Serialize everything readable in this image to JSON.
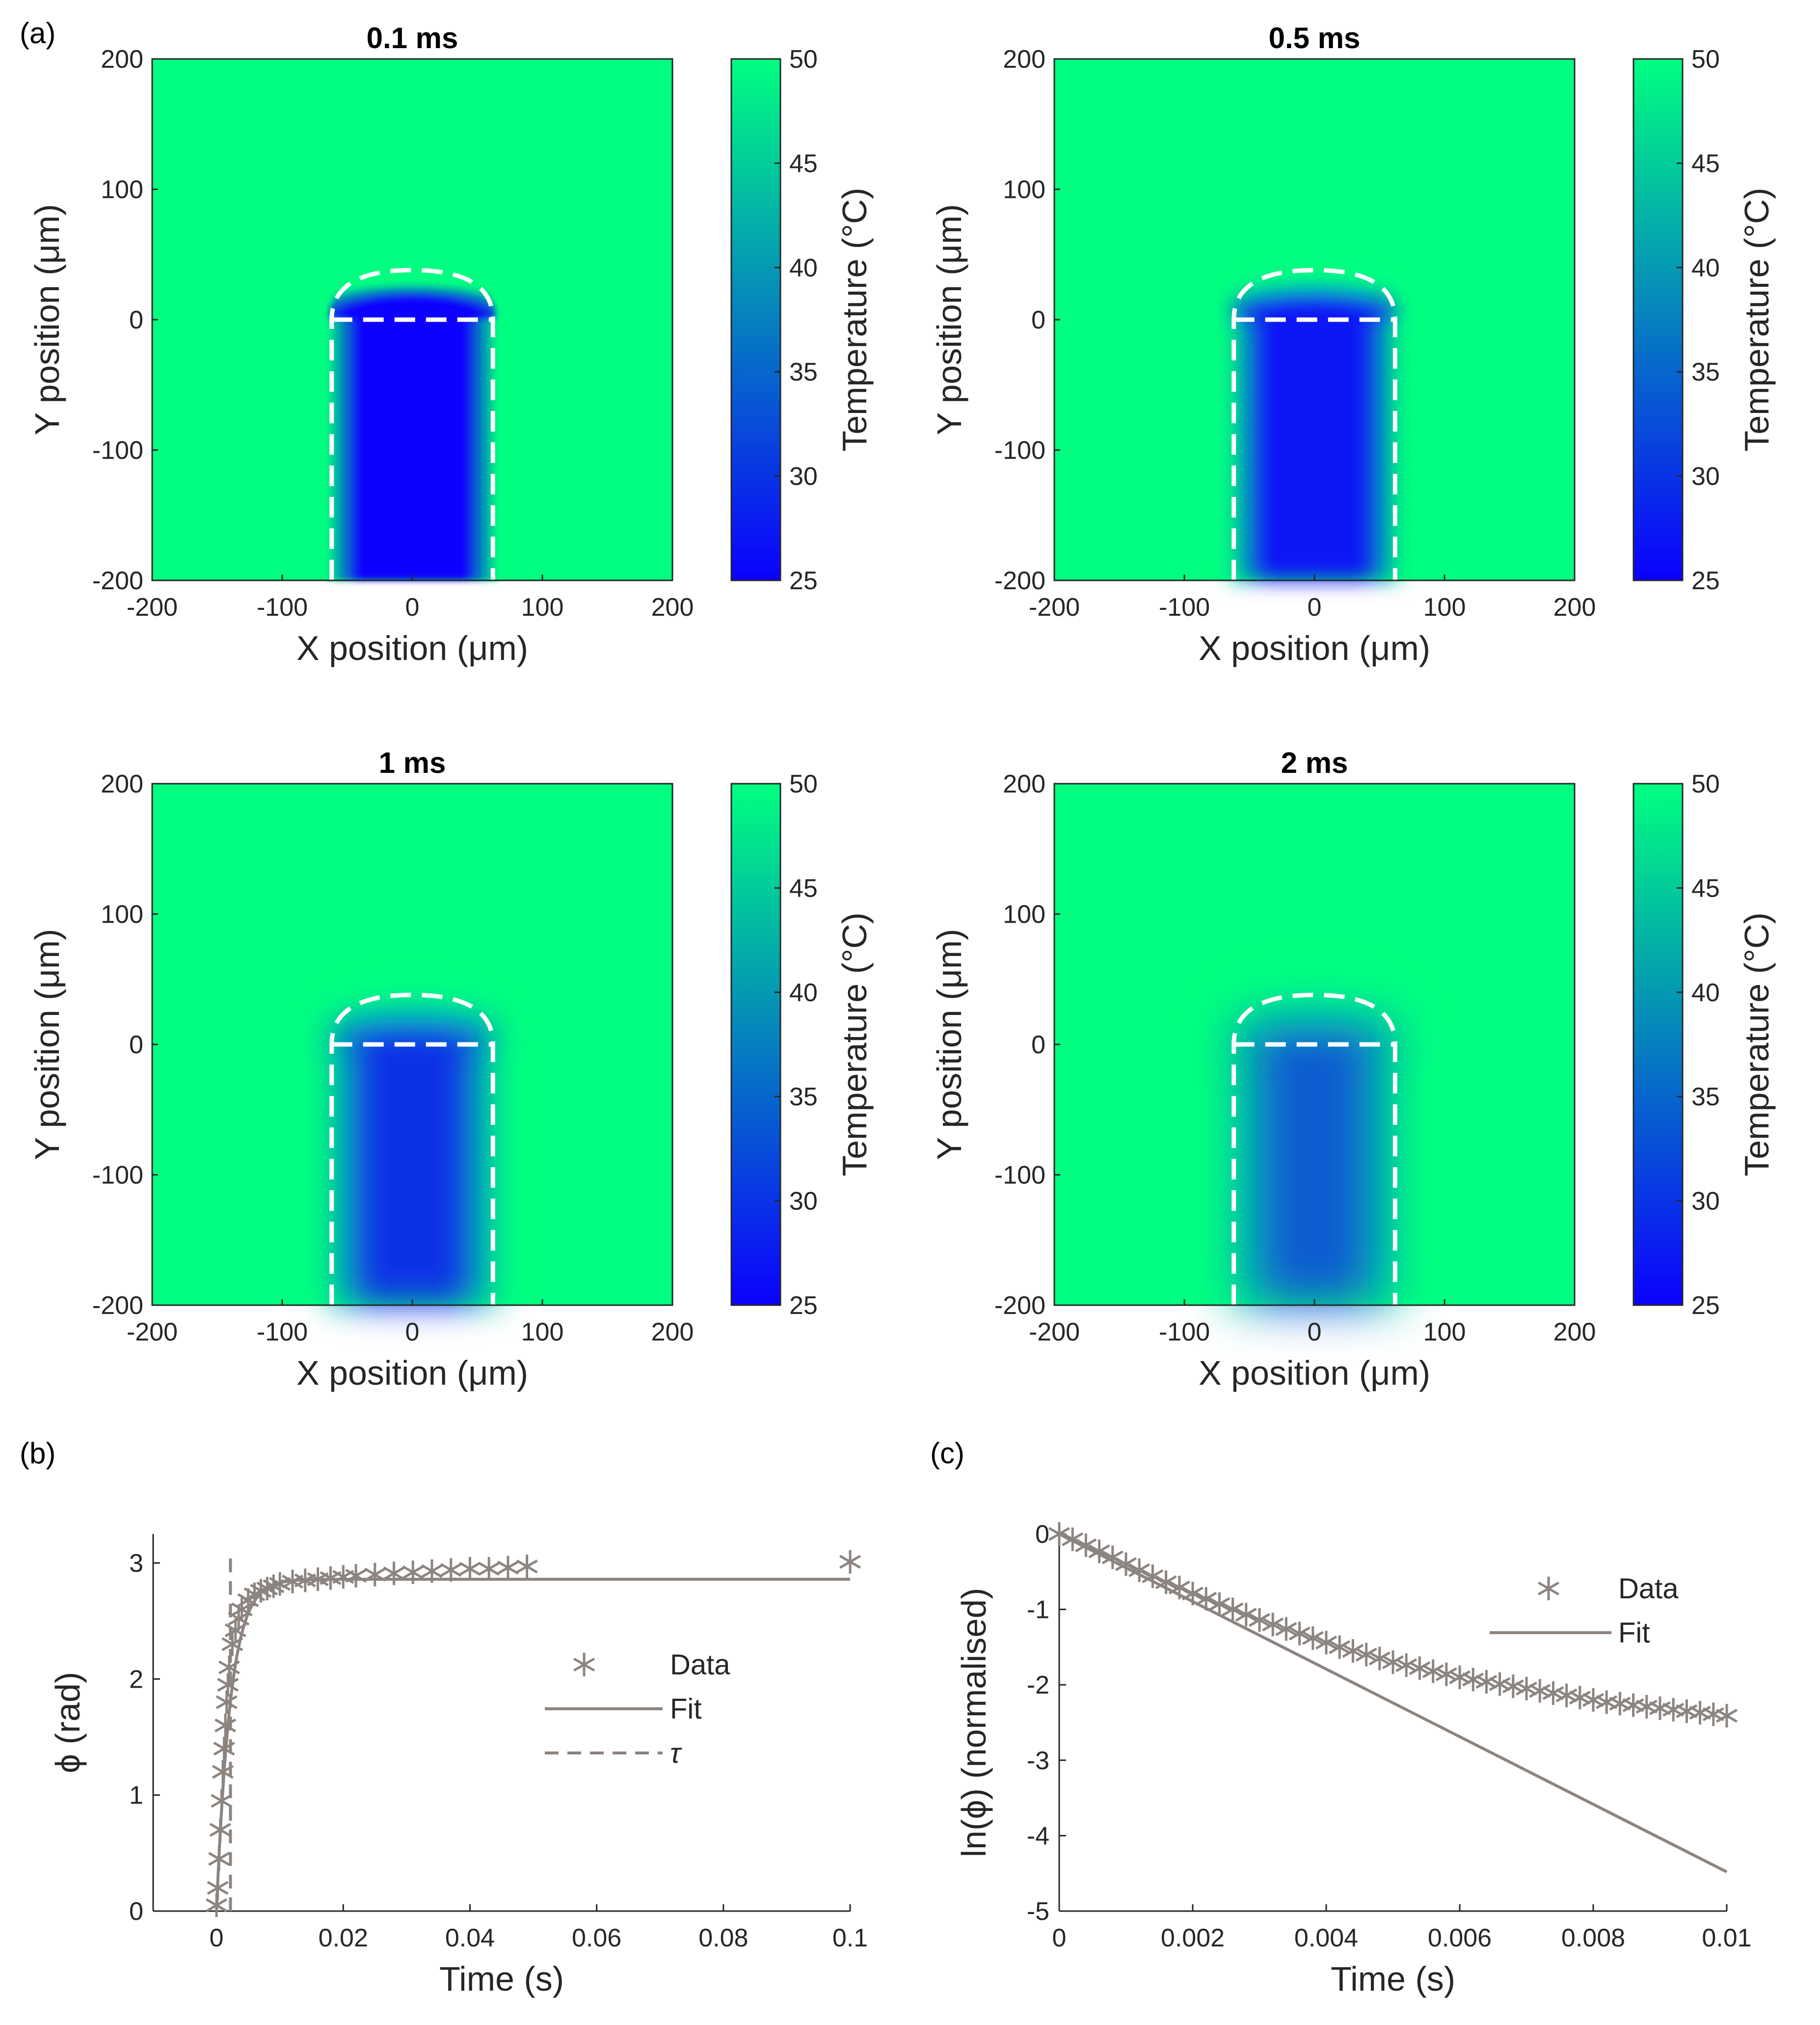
{
  "labels": {
    "a": "(a)",
    "b": "(b)",
    "c": "(c)"
  },
  "chart_data": [
    {
      "type": "heatmap",
      "title": "0.1 ms",
      "xlabel": "X position (μm)",
      "ylabel": "Y position (μm)",
      "colorbar_label": "Temperature (°C)",
      "xlim": [
        -200,
        200
      ],
      "ylim": [
        -200,
        200
      ],
      "clim": [
        25,
        50
      ],
      "xticks": [
        "-200",
        "-100",
        "0",
        "100",
        "200"
      ],
      "yticks": [
        "-200",
        "-100",
        "0",
        "100",
        "200"
      ],
      "cticks": [
        "25",
        "30",
        "35",
        "40",
        "45",
        "50"
      ],
      "channel_halfwidth_um": 62,
      "channel_inner_temp": 25,
      "ambient_temp": 50,
      "colors": {
        "low": "#0b00ff",
        "high": "#00ff80"
      }
    },
    {
      "type": "heatmap",
      "title": "0.5 ms",
      "xlabel": "X position (μm)",
      "ylabel": "Y position (μm)",
      "colorbar_label": "Temperature (°C)",
      "xlim": [
        -200,
        200
      ],
      "ylim": [
        -200,
        200
      ],
      "clim": [
        25,
        50
      ],
      "xticks": [
        "-200",
        "-100",
        "0",
        "100",
        "200"
      ],
      "yticks": [
        "-200",
        "-100",
        "0",
        "100",
        "200"
      ],
      "cticks": [
        "25",
        "30",
        "35",
        "40",
        "45",
        "50"
      ],
      "channel_halfwidth_um": 62,
      "channel_inner_temp": 27,
      "ambient_temp": 50,
      "colors": {
        "low": "#0b00ff",
        "high": "#00ff80"
      }
    },
    {
      "type": "heatmap",
      "title": "1 ms",
      "xlabel": "X position (μm)",
      "ylabel": "Y position (μm)",
      "colorbar_label": "Temperature (°C)",
      "xlim": [
        -200,
        200
      ],
      "ylim": [
        -200,
        200
      ],
      "clim": [
        25,
        50
      ],
      "xticks": [
        "-200",
        "-100",
        "0",
        "100",
        "200"
      ],
      "yticks": [
        "-200",
        "-100",
        "0",
        "100",
        "200"
      ],
      "cticks": [
        "25",
        "30",
        "35",
        "40",
        "45",
        "50"
      ],
      "channel_halfwidth_um": 62,
      "channel_inner_temp": 30,
      "ambient_temp": 50,
      "colors": {
        "low": "#0b00ff",
        "high": "#00ff80"
      }
    },
    {
      "type": "heatmap",
      "title": "2 ms",
      "xlabel": "X position (μm)",
      "ylabel": "Y position (μm)",
      "colorbar_label": "Temperature (°C)",
      "xlim": [
        -200,
        200
      ],
      "ylim": [
        -200,
        200
      ],
      "clim": [
        25,
        50
      ],
      "xticks": [
        "-200",
        "-100",
        "0",
        "100",
        "200"
      ],
      "yticks": [
        "-200",
        "-100",
        "0",
        "100",
        "200"
      ],
      "cticks": [
        "25",
        "30",
        "35",
        "40",
        "45",
        "50"
      ],
      "channel_halfwidth_um": 62,
      "channel_inner_temp": 34,
      "ambient_temp": 50,
      "colors": {
        "low": "#0b00ff",
        "high": "#00ff80"
      }
    },
    {
      "type": "scatter",
      "xlabel": "Time (s)",
      "ylabel": "ϕ (rad)",
      "xlim": [
        -0.01,
        0.1
      ],
      "ylim": [
        0,
        3.25
      ],
      "xticks": [
        "0",
        "0.02",
        "0.04",
        "0.06",
        "0.08",
        "0.1"
      ],
      "yticks": [
        "0",
        "1",
        "2",
        "3"
      ],
      "legend": [
        "Data",
        "Fit",
        "τ"
      ],
      "legend_position": "center-right",
      "tau": 0.0022,
      "fit_plateau": 2.86,
      "color": "#8c8480",
      "series": [
        {
          "name": "Data",
          "x": [
            0,
            0.0002,
            0.0004,
            0.0006,
            0.0008,
            0.001,
            0.0012,
            0.0014,
            0.0016,
            0.0018,
            0.002,
            0.0025,
            0.003,
            0.0035,
            0.004,
            0.005,
            0.006,
            0.007,
            0.008,
            0.009,
            0.01,
            0.012,
            0.014,
            0.016,
            0.018,
            0.02,
            0.022,
            0.025,
            0.028,
            0.031,
            0.034,
            0.037,
            0.04,
            0.043,
            0.046,
            0.049,
            0.1
          ],
          "y": [
            0.05,
            0.2,
            0.45,
            0.7,
            0.95,
            1.2,
            1.4,
            1.6,
            1.8,
            1.95,
            2.1,
            2.3,
            2.42,
            2.52,
            2.6,
            2.68,
            2.73,
            2.76,
            2.78,
            2.8,
            2.82,
            2.84,
            2.85,
            2.86,
            2.87,
            2.88,
            2.89,
            2.9,
            2.91,
            2.92,
            2.93,
            2.94,
            2.95,
            2.95,
            2.96,
            2.97,
            3.01
          ]
        },
        {
          "name": "Fit",
          "x": [
            0,
            0.1
          ],
          "y": [
            0,
            2.86
          ]
        }
      ]
    },
    {
      "type": "scatter",
      "xlabel": "Time (s)",
      "ylabel": "ln(ϕ) (normalised)",
      "xlim": [
        0,
        0.01
      ],
      "ylim": [
        -5,
        0
      ],
      "xticks": [
        "0",
        "0.002",
        "0.004",
        "0.006",
        "0.008",
        "0.01"
      ],
      "yticks": [
        "-5",
        "-4",
        "-3",
        "-2",
        "-1",
        "0"
      ],
      "legend": [
        "Data",
        "Fit"
      ],
      "legend_position": "top-right",
      "color": "#8c8480",
      "series": [
        {
          "name": "Data",
          "x": [
            0,
            0.0002,
            0.0004,
            0.0006,
            0.0008,
            0.001,
            0.0012,
            0.0014,
            0.0016,
            0.0018,
            0.002,
            0.0022,
            0.0024,
            0.0026,
            0.0028,
            0.003,
            0.0032,
            0.0034,
            0.0036,
            0.0038,
            0.004,
            0.0042,
            0.0044,
            0.0046,
            0.0048,
            0.005,
            0.0052,
            0.0054,
            0.0056,
            0.0058,
            0.006,
            0.0062,
            0.0064,
            0.0066,
            0.0068,
            0.007,
            0.0072,
            0.0074,
            0.0076,
            0.0078,
            0.008,
            0.0082,
            0.0084,
            0.0086,
            0.0088,
            0.009,
            0.0092,
            0.0094,
            0.0096,
            0.0098,
            0.01
          ],
          "y": [
            0,
            -0.07,
            -0.15,
            -0.23,
            -0.31,
            -0.4,
            -0.48,
            -0.56,
            -0.64,
            -0.71,
            -0.79,
            -0.86,
            -0.93,
            -1.0,
            -1.07,
            -1.14,
            -1.2,
            -1.26,
            -1.32,
            -1.38,
            -1.44,
            -1.5,
            -1.55,
            -1.6,
            -1.65,
            -1.7,
            -1.74,
            -1.78,
            -1.82,
            -1.86,
            -1.9,
            -1.93,
            -1.96,
            -1.99,
            -2.02,
            -2.05,
            -2.08,
            -2.11,
            -2.14,
            -2.17,
            -2.2,
            -2.23,
            -2.25,
            -2.27,
            -2.29,
            -2.31,
            -2.33,
            -2.35,
            -2.37,
            -2.39,
            -2.41
          ]
        },
        {
          "name": "Fit",
          "x": [
            0,
            0.01
          ],
          "y": [
            0,
            -4.48
          ]
        }
      ]
    }
  ]
}
